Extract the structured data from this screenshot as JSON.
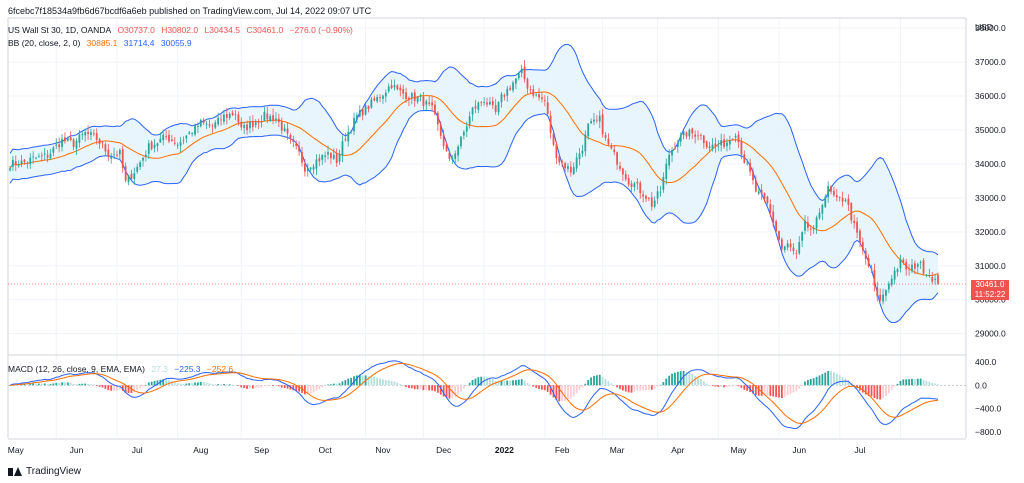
{
  "header": {
    "publish_line": "6fcebc7f18534a9fb6d67bcdf6a6eb published on TradingView.com, Jul 14, 2022 09:07 UTC"
  },
  "symbol": {
    "name": "US Wall St 30, 1D, OANDA",
    "open": "O30737.0",
    "high": "H30802.0",
    "low": "L30434.5",
    "close": "C30461.0",
    "change": "−276.0 (−0.90%)"
  },
  "bb_legend": {
    "label": "BB (20, close, 2, 0)",
    "basis": "30885.1",
    "upper": "31714.4",
    "lower": "30055.9"
  },
  "macd_legend": {
    "label": "MACD (12, 26, close, 9, EMA, EMA)",
    "hist": "27.3",
    "macd": "−225.3",
    "signal": "−252.6"
  },
  "last_price": {
    "value": "30461.0",
    "countdown": "11:52:22"
  },
  "footer": {
    "brand": "TradingView"
  },
  "colors": {
    "up": "#26a69a",
    "down": "#ef5350",
    "bb_band": "#2962ff",
    "bb_basis": "#ff6d00",
    "bb_fill": "#e3f2fd",
    "macd_line": "#2962ff",
    "signal_line": "#ff6d00",
    "hist_up_strong": "#26a69a",
    "hist_up_weak": "#b2dfdb",
    "hist_down_strong": "#ff5252",
    "hist_down_weak": "#ffcdd2"
  },
  "chart_data": [
    {
      "type": "candlestick",
      "title": "US Wall St 30, 1D, OANDA",
      "currency_label": "USD",
      "ylim": [
        28400,
        38300
      ],
      "yticks": [
        "29000.0",
        "30000.0",
        "31000.0",
        "32000.0",
        "33000.0",
        "34000.0",
        "35000.0",
        "36000.0",
        "37000.0",
        "38000.0"
      ],
      "x_ticks": [
        "May",
        "Jun",
        "Jul",
        "Aug",
        "Sep",
        "Oct",
        "Nov",
        "Dec",
        "2022",
        "Feb",
        "Mar",
        "Apr",
        "May",
        "Jun",
        "Jul"
      ],
      "close_anchor_points": [
        [
          0,
          34000
        ],
        [
          5,
          34050
        ],
        [
          8,
          34150
        ],
        [
          13,
          34250
        ],
        [
          18,
          34700
        ],
        [
          22,
          34600
        ],
        [
          26,
          34900
        ],
        [
          30,
          34750
        ],
        [
          34,
          34300
        ],
        [
          38,
          34300
        ],
        [
          40,
          33450
        ],
        [
          44,
          33900
        ],
        [
          48,
          34500
        ],
        [
          54,
          34800
        ],
        [
          58,
          34600
        ],
        [
          62,
          34900
        ],
        [
          66,
          35200
        ],
        [
          70,
          35100
        ],
        [
          74,
          35400
        ],
        [
          78,
          35500
        ],
        [
          80,
          35000
        ],
        [
          84,
          35200
        ],
        [
          88,
          35400
        ],
        [
          92,
          35350
        ],
        [
          96,
          34800
        ],
        [
          100,
          34300
        ],
        [
          102,
          33900
        ],
        [
          106,
          34100
        ],
        [
          110,
          34300
        ],
        [
          113,
          34100
        ],
        [
          116,
          34800
        ],
        [
          120,
          35400
        ],
        [
          124,
          35700
        ],
        [
          128,
          36000
        ],
        [
          132,
          36350
        ],
        [
          134,
          36150
        ],
        [
          138,
          36000
        ],
        [
          142,
          35900
        ],
        [
          146,
          35600
        ],
        [
          150,
          34600
        ],
        [
          152,
          34050
        ],
        [
          156,
          34700
        ],
        [
          160,
          35600
        ],
        [
          164,
          35900
        ],
        [
          168,
          35500
        ],
        [
          170,
          35950
        ],
        [
          174,
          36400
        ],
        [
          177,
          36700
        ],
        [
          179,
          36300
        ],
        [
          182,
          36000
        ],
        [
          185,
          35850
        ],
        [
          188,
          34500
        ],
        [
          190,
          34100
        ],
        [
          194,
          33800
        ],
        [
          198,
          34500
        ],
        [
          200,
          35100
        ],
        [
          204,
          35300
        ],
        [
          206,
          34700
        ],
        [
          210,
          34100
        ],
        [
          214,
          33500
        ],
        [
          216,
          33400
        ],
        [
          220,
          33050
        ],
        [
          222,
          32800
        ],
        [
          225,
          33200
        ],
        [
          228,
          34300
        ],
        [
          231,
          34700
        ],
        [
          234,
          34900
        ],
        [
          238,
          34900
        ],
        [
          241,
          34600
        ],
        [
          244,
          34500
        ],
        [
          248,
          34650
        ],
        [
          251,
          34950
        ],
        [
          254,
          34100
        ],
        [
          256,
          33700
        ],
        [
          258,
          33200
        ],
        [
          262,
          32800
        ],
        [
          264,
          32300
        ],
        [
          267,
          31500
        ],
        [
          269,
          31600
        ],
        [
          272,
          31300
        ],
        [
          275,
          32200
        ],
        [
          278,
          32000
        ],
        [
          281,
          32900
        ],
        [
          283,
          33250
        ],
        [
          286,
          32900
        ],
        [
          289,
          33000
        ],
        [
          292,
          32150
        ],
        [
          295,
          31400
        ],
        [
          298,
          30800
        ],
        [
          300,
          30000
        ],
        [
          302,
          30100
        ],
        [
          305,
          30700
        ],
        [
          308,
          31100
        ],
        [
          311,
          30850
        ],
        [
          314,
          31100
        ],
        [
          316,
          30900
        ],
        [
          318,
          30750
        ],
        [
          321,
          30461
        ]
      ],
      "bollinger": {
        "period": 20,
        "stddev": 2,
        "last": {
          "basis": 30885.1,
          "upper": 31714.4,
          "lower": 30055.9
        }
      },
      "last_close": 30461.0
    },
    {
      "type": "macd_histogram",
      "title": "MACD (12, 26, close, 9, EMA, EMA)",
      "ylim": [
        -900,
        500
      ],
      "yticks": [
        "400.0",
        "0.0",
        "−400.0",
        "−800.0"
      ],
      "last": {
        "histogram": 27.3,
        "macd": -225.3,
        "signal": -252.6
      }
    }
  ]
}
